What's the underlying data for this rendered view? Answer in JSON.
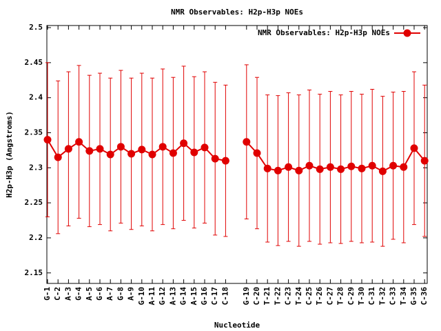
{
  "chart_data": {
    "type": "line",
    "title": "NMR Observables: H2p-H3p NOEs",
    "x_label": "Nucleotide",
    "y_label": "H2p-H3p (Angstroms)",
    "categories": [
      "G-1",
      "C-2",
      "A-3",
      "G-4",
      "A-5",
      "G-6",
      "A-7",
      "G-8",
      "A-9",
      "G-10",
      "A-11",
      "G-12",
      "A-13",
      "G-14",
      "A-15",
      "G-16",
      "C-17",
      "C-18",
      null,
      "G-19",
      "C-20",
      "T-21",
      "T-22",
      "C-23",
      "T-24",
      "C-25",
      "T-26",
      "C-27",
      "T-28",
      "C-29",
      "T-30",
      "C-31",
      "T-32",
      "C-33",
      "T-34",
      "G-35",
      "C-36"
    ],
    "series": [
      {
        "name": "NMR Observables: H2p-H3p NOEs",
        "color": "#e00000",
        "values": [
          2.34,
          2.315,
          2.327,
          2.337,
          2.324,
          2.327,
          2.319,
          2.33,
          2.32,
          2.326,
          2.319,
          2.33,
          2.321,
          2.335,
          2.322,
          2.329,
          2.313,
          2.31,
          null,
          2.337,
          2.321,
          2.299,
          2.296,
          2.301,
          2.296,
          2.303,
          2.298,
          2.301,
          2.298,
          2.302,
          2.299,
          2.303,
          2.295,
          2.303,
          2.301,
          2.328,
          2.31
        ],
        "errors": [
          0.11,
          0.109,
          0.11,
          0.109,
          0.108,
          0.108,
          0.109,
          0.109,
          0.108,
          0.109,
          0.109,
          0.111,
          0.108,
          0.11,
          0.108,
          0.108,
          0.109,
          0.108,
          null,
          0.11,
          0.108,
          0.105,
          0.107,
          0.106,
          0.108,
          0.108,
          0.107,
          0.108,
          0.106,
          0.107,
          0.106,
          0.109,
          0.107,
          0.105,
          0.108,
          0.109,
          0.108
        ]
      }
    ],
    "ylim": [
      2.135,
      2.503
    ],
    "yticks": [
      2.15,
      2.2,
      2.25,
      2.3,
      2.35,
      2.4,
      2.45,
      2.5
    ],
    "legend": "top-right",
    "grid": false
  }
}
